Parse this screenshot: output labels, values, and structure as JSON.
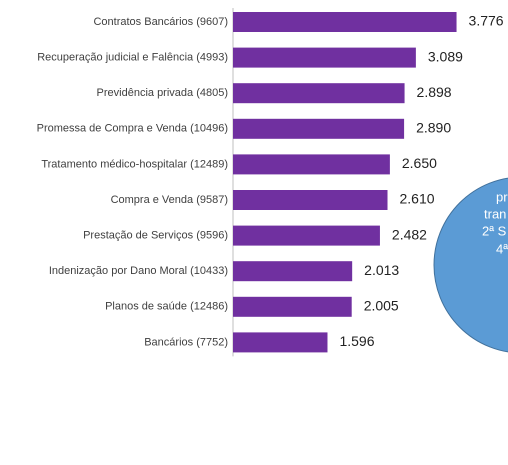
{
  "chart_data": {
    "type": "bar",
    "orientation": "horizontal",
    "categories": [
      "Contratos Bancários (9607)",
      "Recuperação judicial e Falência (4993)",
      "Previdência privada (4805)",
      "Promessa de Compra e Venda (10496)",
      "Tratamento médico-hospitalar (12489)",
      "Compra e Venda (9587)",
      "Prestação de Serviços (9596)",
      "Indenização por Dano Moral (10433)",
      "Planos de saúde (12486)",
      "Bancários (7752)"
    ],
    "values": [
      3776,
      3089,
      2898,
      2890,
      2650,
      2610,
      2482,
      2013,
      2005,
      1596
    ],
    "value_labels": [
      "3.776",
      "3.089",
      "2.898",
      "2.890",
      "2.650",
      "2.610",
      "2.482",
      "2.013",
      "2.005",
      "1.596"
    ],
    "color": "#7030a0",
    "annotation": {
      "lines": [
        "-",
        "pr",
        "tran",
        "2ª S",
        "4ª"
      ],
      "color": "#5b9bd5"
    }
  }
}
